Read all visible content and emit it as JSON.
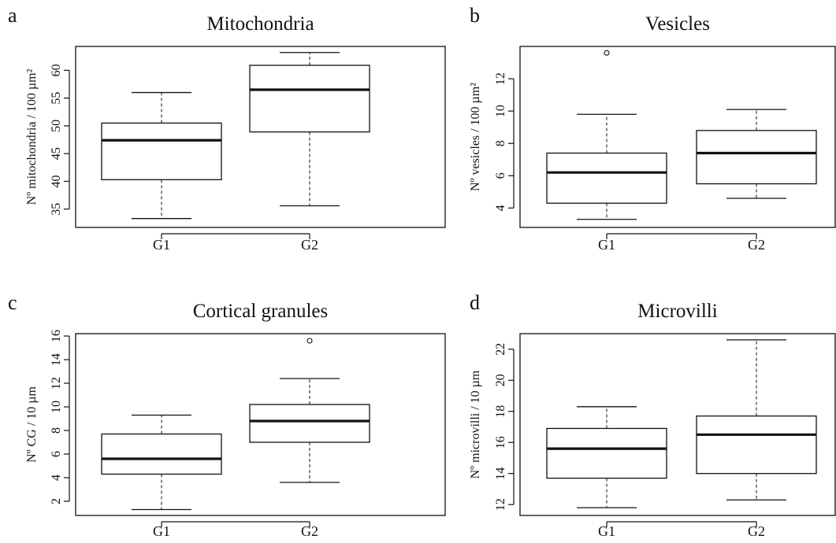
{
  "figure": {
    "panels": [
      {
        "letter": "a",
        "title": "Mitochondria",
        "ylabel": "Nº mitochondria / 100 µm²"
      },
      {
        "letter": "b",
        "title": "Vesicles",
        "ylabel": "Nº vesicles / 100 µm²"
      },
      {
        "letter": "c",
        "title": "Cortical granules",
        "ylabel": "Nº CG / 10 µm"
      },
      {
        "letter": "d",
        "title": "Microvilli",
        "ylabel": "Nº microvilli / 10 µm"
      }
    ]
  },
  "chart_data": [
    {
      "type": "box",
      "title": "Mitochondria",
      "xlabel": "",
      "ylabel": "Nº mitochondria / 100 µm²",
      "ylim": [
        31.7,
        64.3
      ],
      "yticks": [
        35,
        40,
        45,
        50,
        55,
        60
      ],
      "grid": false,
      "categories": [
        "G1",
        "G2"
      ],
      "boxes": [
        {
          "category": "G1",
          "whisker_low": 33.3,
          "q1": 40.3,
          "median": 47.4,
          "q3": 50.5,
          "whisker_high": 56.0,
          "outliers": []
        },
        {
          "category": "G2",
          "whisker_low": 35.6,
          "q1": 48.9,
          "median": 56.5,
          "q3": 60.9,
          "whisker_high": 63.2,
          "outliers": []
        }
      ]
    },
    {
      "type": "box",
      "title": "Vesicles",
      "xlabel": "",
      "ylabel": "Nº vesicles / 100 µm²",
      "ylim": [
        2.8,
        14.0
      ],
      "yticks": [
        4,
        6,
        8,
        10,
        12
      ],
      "grid": false,
      "categories": [
        "G1",
        "G2"
      ],
      "boxes": [
        {
          "category": "G1",
          "whisker_low": 3.3,
          "q1": 4.3,
          "median": 6.2,
          "q3": 7.4,
          "whisker_high": 9.8,
          "outliers": [
            13.6
          ]
        },
        {
          "category": "G2",
          "whisker_low": 4.6,
          "q1": 5.5,
          "median": 7.4,
          "q3": 8.8,
          "whisker_high": 10.1,
          "outliers": []
        }
      ]
    },
    {
      "type": "box",
      "title": "Cortical granules",
      "xlabel": "",
      "ylabel": "Nº CG / 10 µm",
      "ylim": [
        0.8,
        16.2
      ],
      "yticks": [
        2,
        4,
        6,
        8,
        10,
        12,
        14,
        16
      ],
      "grid": false,
      "categories": [
        "G1",
        "G2"
      ],
      "boxes": [
        {
          "category": "G1",
          "whisker_low": 1.3,
          "q1": 4.3,
          "median": 5.6,
          "q3": 7.7,
          "whisker_high": 9.3,
          "outliers": []
        },
        {
          "category": "G2",
          "whisker_low": 3.6,
          "q1": 7.0,
          "median": 8.8,
          "q3": 10.2,
          "whisker_high": 12.4,
          "outliers": [
            15.6
          ]
        }
      ]
    },
    {
      "type": "box",
      "title": "Microvilli",
      "xlabel": "",
      "ylabel": "Nº microvilli / 10 µm",
      "ylim": [
        11.3,
        23.0
      ],
      "yticks": [
        12,
        14,
        16,
        18,
        20,
        22
      ],
      "grid": false,
      "categories": [
        "G1",
        "G2"
      ],
      "boxes": [
        {
          "category": "G1",
          "whisker_low": 11.8,
          "q1": 13.7,
          "median": 15.6,
          "q3": 16.9,
          "whisker_high": 18.3,
          "outliers": []
        },
        {
          "category": "G2",
          "whisker_low": 12.3,
          "q1": 14.0,
          "median": 16.5,
          "q3": 17.7,
          "whisker_high": 22.6,
          "outliers": []
        }
      ]
    }
  ]
}
